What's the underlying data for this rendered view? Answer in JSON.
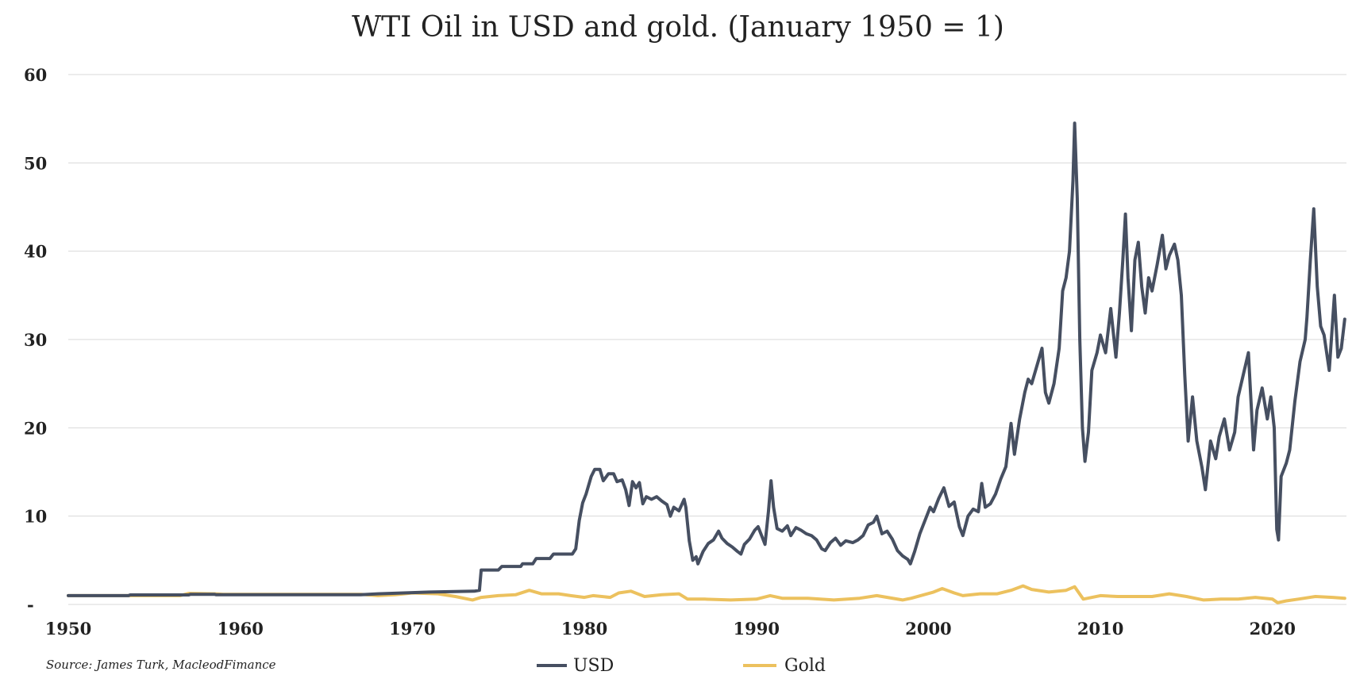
{
  "chart_data": {
    "type": "line",
    "title": "WTI Oil in USD and gold. (January 1950 = 1)",
    "xlabel": "",
    "ylabel": "",
    "xlim": [
      1950,
      2024.3
    ],
    "ylim": [
      0,
      60
    ],
    "grid": true,
    "x_ticks": [
      1950,
      1960,
      1970,
      1980,
      1990,
      2000,
      2010,
      2020
    ],
    "x_tick_labels": [
      "1950",
      "1960",
      "1970",
      "1980",
      "1990",
      "2000",
      "2010",
      "2020"
    ],
    "y_ticks": [
      0,
      10,
      20,
      30,
      40,
      50,
      60
    ],
    "y_tick_labels": [
      "-",
      "10",
      "20",
      "30",
      "40",
      "50",
      "60"
    ],
    "source": "Source: James Turk, MacleodFimance",
    "legend": {
      "position": "bottom-center"
    },
    "series": [
      {
        "name": "USD",
        "color": "#464f61",
        "points": [
          [
            1950,
            1.0
          ],
          [
            1953.5,
            1.0
          ],
          [
            1953.6,
            1.08
          ],
          [
            1957,
            1.08
          ],
          [
            1957.1,
            1.15
          ],
          [
            1958.5,
            1.15
          ],
          [
            1958.6,
            1.1
          ],
          [
            1967,
            1.1
          ],
          [
            1968,
            1.2
          ],
          [
            1969.5,
            1.3
          ],
          [
            1971,
            1.4
          ],
          [
            1973.6,
            1.5
          ],
          [
            1973.9,
            1.6
          ],
          [
            1974.0,
            3.9
          ],
          [
            1975,
            3.9
          ],
          [
            1975.2,
            4.3
          ],
          [
            1976.3,
            4.3
          ],
          [
            1976.4,
            4.6
          ],
          [
            1977,
            4.6
          ],
          [
            1977.2,
            5.2
          ],
          [
            1978,
            5.2
          ],
          [
            1978.2,
            5.7
          ],
          [
            1979.3,
            5.7
          ],
          [
            1979.5,
            6.3
          ],
          [
            1979.7,
            9.5
          ],
          [
            1979.9,
            11.5
          ],
          [
            1980.1,
            12.5
          ],
          [
            1980.4,
            14.5
          ],
          [
            1980.6,
            15.3
          ],
          [
            1980.9,
            15.3
          ],
          [
            1981.1,
            14.0
          ],
          [
            1981.4,
            14.8
          ],
          [
            1981.7,
            14.8
          ],
          [
            1981.9,
            13.9
          ],
          [
            1982.2,
            14.1
          ],
          [
            1982.4,
            13.0
          ],
          [
            1982.6,
            11.2
          ],
          [
            1982.8,
            13.9
          ],
          [
            1983.0,
            13.2
          ],
          [
            1983.2,
            13.8
          ],
          [
            1983.4,
            11.4
          ],
          [
            1983.6,
            12.2
          ],
          [
            1983.9,
            11.9
          ],
          [
            1984.2,
            12.2
          ],
          [
            1984.5,
            11.7
          ],
          [
            1984.8,
            11.3
          ],
          [
            1985.0,
            10.0
          ],
          [
            1985.2,
            11.0
          ],
          [
            1985.5,
            10.6
          ],
          [
            1985.8,
            11.9
          ],
          [
            1985.9,
            11.0
          ],
          [
            1986.1,
            7.2
          ],
          [
            1986.3,
            5.0
          ],
          [
            1986.5,
            5.4
          ],
          [
            1986.6,
            4.6
          ],
          [
            1986.9,
            6.0
          ],
          [
            1987.2,
            6.9
          ],
          [
            1987.5,
            7.3
          ],
          [
            1987.8,
            8.3
          ],
          [
            1988.0,
            7.5
          ],
          [
            1988.3,
            6.9
          ],
          [
            1988.6,
            6.5
          ],
          [
            1988.9,
            6.0
          ],
          [
            1989.1,
            5.7
          ],
          [
            1989.3,
            6.8
          ],
          [
            1989.6,
            7.4
          ],
          [
            1989.9,
            8.4
          ],
          [
            1990.1,
            8.8
          ],
          [
            1990.3,
            7.8
          ],
          [
            1990.5,
            6.8
          ],
          [
            1990.7,
            10.5
          ],
          [
            1990.85,
            14.0
          ],
          [
            1991.0,
            11.0
          ],
          [
            1991.2,
            8.6
          ],
          [
            1991.5,
            8.3
          ],
          [
            1991.8,
            8.9
          ],
          [
            1992.0,
            7.8
          ],
          [
            1992.3,
            8.7
          ],
          [
            1992.6,
            8.4
          ],
          [
            1992.9,
            8.0
          ],
          [
            1993.2,
            7.8
          ],
          [
            1993.5,
            7.3
          ],
          [
            1993.8,
            6.3
          ],
          [
            1994.0,
            6.1
          ],
          [
            1994.3,
            7.0
          ],
          [
            1994.6,
            7.5
          ],
          [
            1994.9,
            6.7
          ],
          [
            1995.2,
            7.2
          ],
          [
            1995.6,
            7.0
          ],
          [
            1995.9,
            7.3
          ],
          [
            1996.2,
            7.8
          ],
          [
            1996.5,
            9.0
          ],
          [
            1996.8,
            9.3
          ],
          [
            1997.0,
            10.0
          ],
          [
            1997.3,
            8.0
          ],
          [
            1997.6,
            8.3
          ],
          [
            1997.9,
            7.4
          ],
          [
            1998.2,
            6.1
          ],
          [
            1998.5,
            5.5
          ],
          [
            1998.8,
            5.1
          ],
          [
            1998.95,
            4.6
          ],
          [
            1999.2,
            6.0
          ],
          [
            1999.5,
            8.0
          ],
          [
            1999.8,
            9.5
          ],
          [
            2000.1,
            11.0
          ],
          [
            2000.3,
            10.5
          ],
          [
            2000.6,
            12.0
          ],
          [
            2000.9,
            13.2
          ],
          [
            2001.2,
            11.1
          ],
          [
            2001.5,
            11.6
          ],
          [
            2001.8,
            8.8
          ],
          [
            2002.0,
            7.8
          ],
          [
            2002.3,
            10.0
          ],
          [
            2002.6,
            10.8
          ],
          [
            2002.9,
            10.5
          ],
          [
            2003.1,
            13.7
          ],
          [
            2003.3,
            11.0
          ],
          [
            2003.6,
            11.4
          ],
          [
            2003.9,
            12.5
          ],
          [
            2004.2,
            14.2
          ],
          [
            2004.5,
            15.6
          ],
          [
            2004.8,
            20.5
          ],
          [
            2005.0,
            17.0
          ],
          [
            2005.3,
            21.0
          ],
          [
            2005.6,
            24.0
          ],
          [
            2005.8,
            25.5
          ],
          [
            2006.0,
            25.0
          ],
          [
            2006.3,
            27.0
          ],
          [
            2006.6,
            29.0
          ],
          [
            2006.8,
            24.0
          ],
          [
            2007.0,
            22.8
          ],
          [
            2007.3,
            25.0
          ],
          [
            2007.6,
            29.0
          ],
          [
            2007.8,
            35.5
          ],
          [
            2008.0,
            37.0
          ],
          [
            2008.2,
            40.0
          ],
          [
            2008.4,
            48.0
          ],
          [
            2008.5,
            54.5
          ],
          [
            2008.65,
            46.0
          ],
          [
            2008.8,
            30.0
          ],
          [
            2008.95,
            20.0
          ],
          [
            2009.1,
            16.2
          ],
          [
            2009.3,
            19.5
          ],
          [
            2009.5,
            26.5
          ],
          [
            2009.8,
            28.5
          ],
          [
            2010.0,
            30.5
          ],
          [
            2010.3,
            28.5
          ],
          [
            2010.6,
            33.5
          ],
          [
            2010.9,
            28.0
          ],
          [
            2011.1,
            33.0
          ],
          [
            2011.3,
            39.0
          ],
          [
            2011.45,
            44.2
          ],
          [
            2011.6,
            37.0
          ],
          [
            2011.8,
            31.0
          ],
          [
            2012.0,
            39.0
          ],
          [
            2012.2,
            41.0
          ],
          [
            2012.4,
            36.0
          ],
          [
            2012.6,
            33.0
          ],
          [
            2012.8,
            37.0
          ],
          [
            2013.0,
            35.5
          ],
          [
            2013.3,
            38.5
          ],
          [
            2013.6,
            41.8
          ],
          [
            2013.8,
            38.0
          ],
          [
            2014.0,
            39.5
          ],
          [
            2014.3,
            40.8
          ],
          [
            2014.5,
            39.0
          ],
          [
            2014.7,
            35.0
          ],
          [
            2014.9,
            26.0
          ],
          [
            2015.1,
            18.5
          ],
          [
            2015.35,
            23.5
          ],
          [
            2015.6,
            18.5
          ],
          [
            2015.9,
            15.5
          ],
          [
            2016.1,
            13.0
          ],
          [
            2016.4,
            18.5
          ],
          [
            2016.7,
            16.5
          ],
          [
            2016.9,
            19.0
          ],
          [
            2017.2,
            21.0
          ],
          [
            2017.5,
            17.5
          ],
          [
            2017.8,
            19.5
          ],
          [
            2018.0,
            23.5
          ],
          [
            2018.3,
            26.0
          ],
          [
            2018.6,
            28.5
          ],
          [
            2018.9,
            17.5
          ],
          [
            2019.1,
            22.0
          ],
          [
            2019.4,
            24.5
          ],
          [
            2019.7,
            21.0
          ],
          [
            2019.9,
            23.5
          ],
          [
            2020.1,
            20.0
          ],
          [
            2020.25,
            8.5
          ],
          [
            2020.35,
            7.3
          ],
          [
            2020.5,
            14.5
          ],
          [
            2020.8,
            16.0
          ],
          [
            2021.0,
            17.5
          ],
          [
            2021.3,
            23.0
          ],
          [
            2021.6,
            27.5
          ],
          [
            2021.9,
            30.0
          ],
          [
            2022.0,
            32.5
          ],
          [
            2022.2,
            39.0
          ],
          [
            2022.4,
            44.8
          ],
          [
            2022.6,
            36.0
          ],
          [
            2022.8,
            31.5
          ],
          [
            2023.0,
            30.5
          ],
          [
            2023.3,
            26.5
          ],
          [
            2023.6,
            35.0
          ],
          [
            2023.8,
            28.0
          ],
          [
            2024.0,
            29.0
          ],
          [
            2024.2,
            32.3
          ]
        ]
      },
      {
        "name": "Gold",
        "color": "#ecc15e",
        "points": [
          [
            1950,
            1.0
          ],
          [
            1956.5,
            1.0
          ],
          [
            1957.0,
            1.25
          ],
          [
            1958.5,
            1.2
          ],
          [
            1959,
            1.15
          ],
          [
            1967,
            1.15
          ],
          [
            1968.0,
            1.0
          ],
          [
            1969.0,
            1.1
          ],
          [
            1970.0,
            1.3
          ],
          [
            1971.5,
            1.2
          ],
          [
            1972.5,
            0.9
          ],
          [
            1973.5,
            0.5
          ],
          [
            1974.0,
            0.8
          ],
          [
            1975.0,
            1.0
          ],
          [
            1976.0,
            1.1
          ],
          [
            1976.8,
            1.6
          ],
          [
            1977.5,
            1.2
          ],
          [
            1978.5,
            1.2
          ],
          [
            1979.2,
            1.0
          ],
          [
            1980.0,
            0.8
          ],
          [
            1980.5,
            1.0
          ],
          [
            1981.5,
            0.8
          ],
          [
            1982.0,
            1.3
          ],
          [
            1982.7,
            1.5
          ],
          [
            1983.5,
            0.9
          ],
          [
            1984.5,
            1.1
          ],
          [
            1985.5,
            1.2
          ],
          [
            1986.0,
            0.6
          ],
          [
            1987.0,
            0.6
          ],
          [
            1988.5,
            0.5
          ],
          [
            1990.0,
            0.6
          ],
          [
            1990.8,
            1.0
          ],
          [
            1991.5,
            0.7
          ],
          [
            1993.0,
            0.7
          ],
          [
            1994.5,
            0.5
          ],
          [
            1996.0,
            0.7
          ],
          [
            1997.0,
            1.0
          ],
          [
            1998.5,
            0.5
          ],
          [
            1999.0,
            0.7
          ],
          [
            2000.3,
            1.4
          ],
          [
            2000.8,
            1.8
          ],
          [
            2001.5,
            1.3
          ],
          [
            2002.0,
            1.0
          ],
          [
            2003.0,
            1.2
          ],
          [
            2004.0,
            1.2
          ],
          [
            2004.8,
            1.6
          ],
          [
            2005.5,
            2.1
          ],
          [
            2006.0,
            1.7
          ],
          [
            2007.0,
            1.4
          ],
          [
            2008.0,
            1.6
          ],
          [
            2008.5,
            2.0
          ],
          [
            2009.0,
            0.6
          ],
          [
            2010.0,
            1.0
          ],
          [
            2011.0,
            0.9
          ],
          [
            2012.0,
            0.9
          ],
          [
            2013.0,
            0.9
          ],
          [
            2014.0,
            1.2
          ],
          [
            2015.0,
            0.9
          ],
          [
            2016.0,
            0.5
          ],
          [
            2017.0,
            0.6
          ],
          [
            2018.0,
            0.6
          ],
          [
            2019.0,
            0.8
          ],
          [
            2020.0,
            0.6
          ],
          [
            2020.3,
            0.2
          ],
          [
            2020.8,
            0.4
          ],
          [
            2021.5,
            0.6
          ],
          [
            2022.5,
            0.9
          ],
          [
            2023.5,
            0.8
          ],
          [
            2024.2,
            0.7
          ]
        ]
      }
    ]
  }
}
